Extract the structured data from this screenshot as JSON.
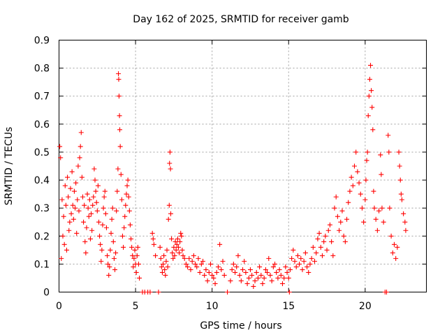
{
  "chart_data": {
    "type": "scatter",
    "title": "Day 162 of 2025, SRMTID for receiver gamb",
    "xlabel": "GPS time / hours",
    "ylabel": "SRMTID / TECUs",
    "xlim": [
      0,
      24
    ],
    "ylim": [
      0,
      0.9
    ],
    "x_ticks": [
      "0",
      "5",
      "10",
      "15",
      "20"
    ],
    "x_tick_values": [
      0,
      5,
      10,
      15,
      20
    ],
    "y_ticks": [
      "0",
      "0.1",
      "0.2",
      "0.3",
      "0.4",
      "0.5",
      "0.6",
      "0.7",
      "0.8",
      "0.9"
    ],
    "y_tick_values": [
      0,
      0.1,
      0.2,
      0.3,
      0.4,
      0.5,
      0.6,
      0.7,
      0.8,
      0.9
    ],
    "grid": true,
    "marker": "+",
    "color": "#ff0000",
    "series": [
      {
        "name": "SRMTID",
        "points": [
          [
            0.05,
            0.52
          ],
          [
            0.1,
            0.48
          ],
          [
            0.15,
            0.12
          ],
          [
            0.2,
            0.33
          ],
          [
            0.25,
            0.2
          ],
          [
            0.3,
            0.27
          ],
          [
            0.35,
            0.17
          ],
          [
            0.4,
            0.38
          ],
          [
            0.45,
            0.31
          ],
          [
            0.5,
            0.15
          ],
          [
            0.55,
            0.41
          ],
          [
            0.6,
            0.34
          ],
          [
            0.65,
            0.22
          ],
          [
            0.7,
            0.25
          ],
          [
            0.75,
            0.37
          ],
          [
            0.8,
            0.28
          ],
          [
            0.85,
            0.43
          ],
          [
            0.9,
            0.31
          ],
          [
            0.95,
            0.26
          ],
          [
            1.0,
            0.36
          ],
          [
            1.05,
            0.3
          ],
          [
            1.1,
            0.39
          ],
          [
            1.15,
            0.21
          ],
          [
            1.2,
            0.33
          ],
          [
            1.25,
            0.45
          ],
          [
            1.3,
            0.29
          ],
          [
            1.35,
            0.48
          ],
          [
            1.4,
            0.52
          ],
          [
            1.45,
            0.57
          ],
          [
            1.5,
            0.41
          ],
          [
            1.55,
            0.34
          ],
          [
            1.6,
            0.25
          ],
          [
            1.65,
            0.31
          ],
          [
            1.7,
            0.18
          ],
          [
            1.75,
            0.14
          ],
          [
            1.8,
            0.23
          ],
          [
            1.85,
            0.35
          ],
          [
            1.9,
            0.3
          ],
          [
            1.95,
            0.27
          ],
          [
            2.0,
            0.33
          ],
          [
            2.05,
            0.19
          ],
          [
            2.1,
            0.28
          ],
          [
            2.15,
            0.22
          ],
          [
            2.2,
            0.31
          ],
          [
            2.25,
            0.34
          ],
          [
            2.3,
            0.44
          ],
          [
            2.35,
            0.4
          ],
          [
            2.4,
            0.36
          ],
          [
            2.45,
            0.32
          ],
          [
            2.5,
            0.29
          ],
          [
            2.55,
            0.38
          ],
          [
            2.6,
            0.25
          ],
          [
            2.65,
            0.2
          ],
          [
            2.7,
            0.17
          ],
          [
            2.75,
            0.11
          ],
          [
            2.8,
            0.15
          ],
          [
            2.85,
            0.24
          ],
          [
            2.9,
            0.3
          ],
          [
            2.95,
            0.34
          ],
          [
            3.0,
            0.36
          ],
          [
            3.05,
            0.28
          ],
          [
            3.1,
            0.23
          ],
          [
            3.15,
            0.13
          ],
          [
            3.2,
            0.1
          ],
          [
            3.25,
            0.06
          ],
          [
            3.3,
            0.09
          ],
          [
            3.35,
            0.15
          ],
          [
            3.4,
            0.21
          ],
          [
            3.45,
            0.26
          ],
          [
            3.5,
            0.3
          ],
          [
            3.55,
            0.18
          ],
          [
            3.6,
            0.12
          ],
          [
            3.65,
            0.08
          ],
          [
            3.7,
            0.14
          ],
          [
            3.75,
            0.29
          ],
          [
            3.8,
            0.36
          ],
          [
            3.85,
            0.44
          ],
          [
            3.88,
            0.78
          ],
          [
            3.9,
            0.76
          ],
          [
            3.92,
            0.7
          ],
          [
            3.95,
            0.63
          ],
          [
            3.97,
            0.58
          ],
          [
            4.0,
            0.52
          ],
          [
            4.05,
            0.42
          ],
          [
            4.1,
            0.33
          ],
          [
            4.15,
            0.2
          ],
          [
            4.2,
            0.16
          ],
          [
            4.25,
            0.23
          ],
          [
            4.3,
            0.27
          ],
          [
            4.35,
            0.31
          ],
          [
            4.4,
            0.35
          ],
          [
            4.45,
            0.38
          ],
          [
            4.5,
            0.4
          ],
          [
            4.55,
            0.34
          ],
          [
            4.6,
            0.29
          ],
          [
            4.65,
            0.24
          ],
          [
            4.7,
            0.19
          ],
          [
            4.75,
            0.16
          ],
          [
            4.8,
            0.13
          ],
          [
            4.85,
            0.09
          ],
          [
            4.9,
            0.12
          ],
          [
            4.95,
            0.15
          ],
          [
            5.0,
            0.1
          ],
          [
            5.05,
            0.07
          ],
          [
            5.1,
            0.13
          ],
          [
            5.15,
            0.16
          ],
          [
            5.2,
            0.1
          ],
          [
            5.25,
            0.05
          ],
          [
            5.45,
            0.0
          ],
          [
            5.6,
            0.0
          ],
          [
            5.8,
            0.0
          ],
          [
            5.95,
            0.0
          ],
          [
            6.1,
            0.21
          ],
          [
            6.15,
            0.19
          ],
          [
            6.2,
            0.17
          ],
          [
            6.3,
            0.13
          ],
          [
            6.5,
            0.0
          ],
          [
            6.6,
            0.16
          ],
          [
            6.65,
            0.12
          ],
          [
            6.7,
            0.09
          ],
          [
            6.75,
            0.07
          ],
          [
            6.8,
            0.1
          ],
          [
            6.85,
            0.13
          ],
          [
            6.9,
            0.08
          ],
          [
            6.95,
            0.06
          ],
          [
            7.0,
            0.11
          ],
          [
            7.05,
            0.15
          ],
          [
            7.1,
            0.09
          ],
          [
            7.15,
            0.26
          ],
          [
            7.2,
            0.31
          ],
          [
            7.22,
            0.46
          ],
          [
            7.25,
            0.5
          ],
          [
            7.28,
            0.44
          ],
          [
            7.3,
            0.28
          ],
          [
            7.35,
            0.19
          ],
          [
            7.4,
            0.14
          ],
          [
            7.45,
            0.12
          ],
          [
            7.5,
            0.16
          ],
          [
            7.55,
            0.13
          ],
          [
            7.6,
            0.18
          ],
          [
            7.65,
            0.15
          ],
          [
            7.7,
            0.17
          ],
          [
            7.75,
            0.19
          ],
          [
            7.8,
            0.16
          ],
          [
            7.85,
            0.14
          ],
          [
            7.9,
            0.18
          ],
          [
            7.95,
            0.21
          ],
          [
            8.0,
            0.2
          ],
          [
            8.05,
            0.15
          ],
          [
            8.1,
            0.13
          ],
          [
            8.2,
            0.12
          ],
          [
            8.3,
            0.1
          ],
          [
            8.4,
            0.09
          ],
          [
            8.5,
            0.12
          ],
          [
            8.6,
            0.08
          ],
          [
            8.7,
            0.11
          ],
          [
            8.8,
            0.13
          ],
          [
            8.9,
            0.1
          ],
          [
            9.0,
            0.09
          ],
          [
            9.1,
            0.12
          ],
          [
            9.2,
            0.07
          ],
          [
            9.3,
            0.1
          ],
          [
            9.4,
            0.11
          ],
          [
            9.5,
            0.06
          ],
          [
            9.6,
            0.08
          ],
          [
            9.7,
            0.04
          ],
          [
            9.8,
            0.07
          ],
          [
            9.9,
            0.1
          ],
          [
            10.0,
            0.06
          ],
          [
            10.1,
            0.05
          ],
          [
            10.2,
            0.03
          ],
          [
            10.3,
            0.07
          ],
          [
            10.4,
            0.09
          ],
          [
            10.5,
            0.17
          ],
          [
            10.6,
            0.08
          ],
          [
            10.7,
            0.11
          ],
          [
            10.8,
            0.06
          ],
          [
            11.0,
            0.0
          ],
          [
            11.2,
            0.04
          ],
          [
            11.3,
            0.08
          ],
          [
            11.4,
            0.1
          ],
          [
            11.5,
            0.07
          ],
          [
            11.6,
            0.09
          ],
          [
            11.7,
            0.13
          ],
          [
            11.8,
            0.06
          ],
          [
            11.9,
            0.04
          ],
          [
            12.0,
            0.08
          ],
          [
            12.1,
            0.11
          ],
          [
            12.2,
            0.07
          ],
          [
            12.3,
            0.03
          ],
          [
            12.4,
            0.05
          ],
          [
            12.5,
            0.08
          ],
          [
            12.6,
            0.06
          ],
          [
            12.7,
            0.02
          ],
          [
            12.8,
            0.04
          ],
          [
            12.9,
            0.07
          ],
          [
            13.0,
            0.05
          ],
          [
            13.1,
            0.09
          ],
          [
            13.2,
            0.06
          ],
          [
            13.3,
            0.03
          ],
          [
            13.4,
            0.05
          ],
          [
            13.5,
            0.08
          ],
          [
            13.6,
            0.07
          ],
          [
            13.7,
            0.12
          ],
          [
            13.8,
            0.06
          ],
          [
            13.9,
            0.04
          ],
          [
            14.0,
            0.09
          ],
          [
            14.1,
            0.1
          ],
          [
            14.2,
            0.07
          ],
          [
            14.3,
            0.05
          ],
          [
            14.4,
            0.08
          ],
          [
            14.5,
            0.06
          ],
          [
            14.6,
            0.03
          ],
          [
            14.7,
            0.05
          ],
          [
            14.8,
            0.09
          ],
          [
            14.9,
            0.07
          ],
          [
            15.0,
            0.05
          ],
          [
            15.05,
            0.0
          ],
          [
            15.1,
            0.08
          ],
          [
            15.2,
            0.12
          ],
          [
            15.3,
            0.15
          ],
          [
            15.4,
            0.11
          ],
          [
            15.5,
            0.09
          ],
          [
            15.6,
            0.13
          ],
          [
            15.7,
            0.1
          ],
          [
            15.8,
            0.12
          ],
          [
            15.9,
            0.08
          ],
          [
            16.0,
            0.11
          ],
          [
            16.1,
            0.14
          ],
          [
            16.2,
            0.09
          ],
          [
            16.3,
            0.07
          ],
          [
            16.4,
            0.1
          ],
          [
            16.5,
            0.12
          ],
          [
            16.6,
            0.16
          ],
          [
            16.7,
            0.11
          ],
          [
            16.8,
            0.14
          ],
          [
            16.9,
            0.19
          ],
          [
            17.0,
            0.21
          ],
          [
            17.1,
            0.16
          ],
          [
            17.2,
            0.13
          ],
          [
            17.3,
            0.18
          ],
          [
            17.4,
            0.2
          ],
          [
            17.5,
            0.15
          ],
          [
            17.6,
            0.22
          ],
          [
            17.7,
            0.24
          ],
          [
            17.8,
            0.18
          ],
          [
            17.9,
            0.13
          ],
          [
            18.0,
            0.3
          ],
          [
            18.1,
            0.34
          ],
          [
            18.2,
            0.27
          ],
          [
            18.3,
            0.22
          ],
          [
            18.4,
            0.25
          ],
          [
            18.5,
            0.29
          ],
          [
            18.6,
            0.2
          ],
          [
            18.7,
            0.18
          ],
          [
            18.8,
            0.26
          ],
          [
            18.9,
            0.32
          ],
          [
            19.0,
            0.36
          ],
          [
            19.1,
            0.41
          ],
          [
            19.2,
            0.38
          ],
          [
            19.3,
            0.45
          ],
          [
            19.4,
            0.5
          ],
          [
            19.5,
            0.43
          ],
          [
            19.6,
            0.39
          ],
          [
            19.7,
            0.35
          ],
          [
            19.8,
            0.3
          ],
          [
            19.9,
            0.25
          ],
          [
            20.0,
            0.33
          ],
          [
            20.05,
            0.4
          ],
          [
            20.1,
            0.47
          ],
          [
            20.15,
            0.5
          ],
          [
            20.2,
            0.63
          ],
          [
            20.25,
            0.7
          ],
          [
            20.3,
            0.76
          ],
          [
            20.35,
            0.81
          ],
          [
            20.4,
            0.72
          ],
          [
            20.45,
            0.66
          ],
          [
            20.5,
            0.58
          ],
          [
            20.55,
            0.36
          ],
          [
            20.6,
            0.3
          ],
          [
            20.7,
            0.26
          ],
          [
            20.8,
            0.22
          ],
          [
            20.9,
            0.29
          ],
          [
            21.0,
            0.49
          ],
          [
            21.05,
            0.42
          ],
          [
            21.1,
            0.3
          ],
          [
            21.2,
            0.25
          ],
          [
            21.3,
            0.0
          ],
          [
            21.4,
            0.0
          ],
          [
            21.5,
            0.56
          ],
          [
            21.55,
            0.5
          ],
          [
            21.6,
            0.3
          ],
          [
            21.7,
            0.2
          ],
          [
            21.8,
            0.14
          ],
          [
            21.9,
            0.17
          ],
          [
            22.0,
            0.12
          ],
          [
            22.1,
            0.16
          ],
          [
            22.2,
            0.5
          ],
          [
            22.25,
            0.45
          ],
          [
            22.3,
            0.4
          ],
          [
            22.35,
            0.35
          ],
          [
            22.4,
            0.33
          ],
          [
            22.5,
            0.28
          ],
          [
            22.6,
            0.25
          ],
          [
            22.65,
            0.22
          ]
        ]
      }
    ]
  }
}
